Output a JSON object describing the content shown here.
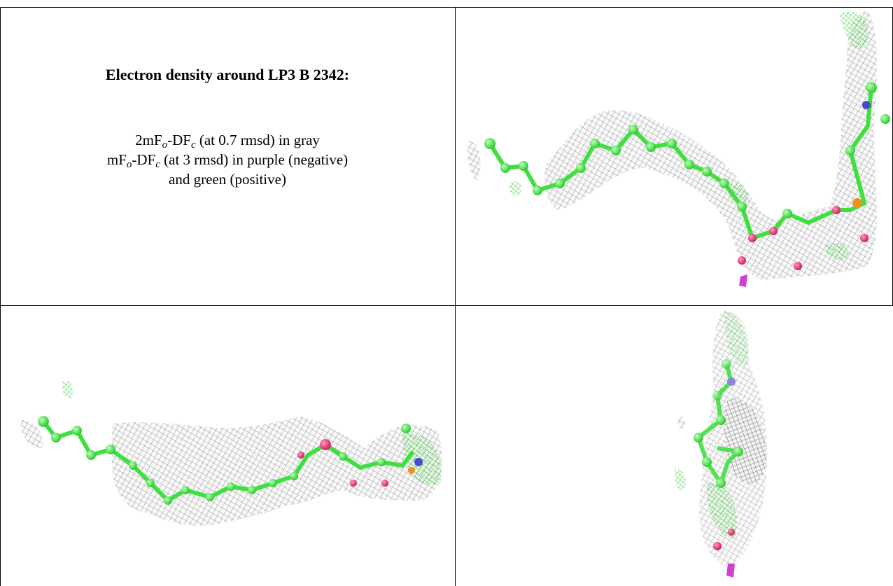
{
  "caption": {
    "title": "Electron density around LP3 B 2342:",
    "lines": [
      [
        "2mF",
        "o",
        "-DF",
        "c",
        " (at 0.7 rmsd) in gray"
      ],
      [
        "mF",
        "o",
        "-DF",
        "c",
        " (at 3 rmsd) in purple (negative)"
      ],
      [
        "and green (positive)"
      ]
    ]
  }
}
